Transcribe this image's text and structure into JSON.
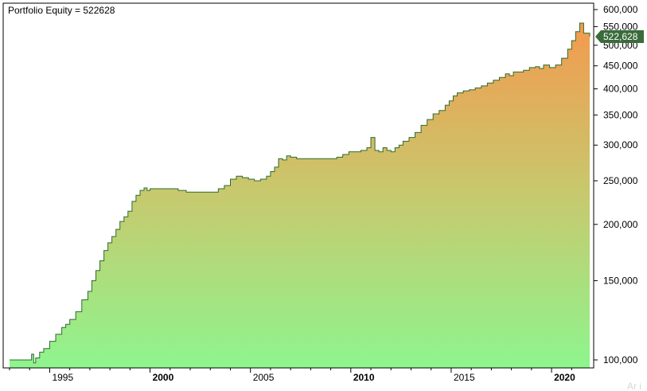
{
  "colors": {
    "line": "#2f6b2f",
    "fill_top": "#f39a4e",
    "fill_mid": "#c7c96e",
    "fill_bottom": "#8ef58e",
    "badge": "#3a6b3a",
    "frame": "#000000"
  },
  "chart_data": {
    "type": "area",
    "title": "Portfolio Equity = 522628",
    "yscale": "log",
    "ylim": [
      96000,
      620000
    ],
    "xlim": [
      1993.0,
      2021.9
    ],
    "grid": false,
    "y_ticks": [
      {
        "value": 600000,
        "label": "600,000"
      },
      {
        "value": 550000,
        "label": "550,000"
      },
      {
        "value": 500000,
        "label": "500,000"
      },
      {
        "value": 450000,
        "label": "450,000"
      },
      {
        "value": 400000,
        "label": "400,000"
      },
      {
        "value": 350000,
        "label": "350,000"
      },
      {
        "value": 300000,
        "label": "300,000"
      },
      {
        "value": 250000,
        "label": "250,000"
      },
      {
        "value": 200000,
        "label": "200,000"
      },
      {
        "value": 150000,
        "label": "150,000"
      },
      {
        "value": 100000,
        "label": "100,000"
      }
    ],
    "x_ticks": [
      {
        "value": 1995,
        "label": "1995",
        "bold": false
      },
      {
        "value": 2000,
        "label": "2000",
        "bold": true
      },
      {
        "value": 2005,
        "label": "2005",
        "bold": false
      },
      {
        "value": 2010,
        "label": "2010",
        "bold": true
      },
      {
        "value": 2015,
        "label": "2015",
        "bold": false
      },
      {
        "value": 2020,
        "label": "2020",
        "bold": true
      }
    ],
    "last_value_label": "522,628",
    "last_value": 522628,
    "series": [
      {
        "x": [
          1993.0,
          1994.0,
          1994.1,
          1994.2,
          1994.3,
          1994.5,
          1994.7,
          1995.0,
          1995.3,
          1995.6,
          1995.8,
          1996.0,
          1996.3,
          1996.6,
          1996.9,
          1997.1,
          1997.3,
          1997.5,
          1997.7,
          1997.9,
          1998.1,
          1998.3,
          1998.5,
          1998.7,
          1998.9,
          1999.1,
          1999.3,
          1999.5,
          1999.7,
          1999.85,
          2000.0,
          2000.5,
          2001.0,
          2001.4,
          2001.8,
          2002.2,
          2002.6,
          2003.0,
          2003.4,
          2003.7,
          2004.0,
          2004.3,
          2004.6,
          2004.9,
          2005.2,
          2005.5,
          2005.8,
          2006.0,
          2006.2,
          2006.4,
          2006.6,
          2006.8,
          2007.0,
          2007.3,
          2007.6,
          2008.0,
          2008.5,
          2009.0,
          2009.3,
          2009.6,
          2009.9,
          2010.2,
          2010.5,
          2010.8,
          2011.0,
          2011.2,
          2011.4,
          2011.6,
          2011.8,
          2012.0,
          2012.2,
          2012.4,
          2012.6,
          2012.9,
          2013.2,
          2013.5,
          2013.8,
          2014.1,
          2014.4,
          2014.7,
          2014.9,
          2015.1,
          2015.3,
          2015.6,
          2015.9,
          2016.2,
          2016.5,
          2016.8,
          2017.1,
          2017.4,
          2017.7,
          2017.9,
          2018.1,
          2018.3,
          2018.6,
          2018.9,
          2019.2,
          2019.4,
          2019.6,
          2019.9,
          2020.2,
          2020.5,
          2020.8,
          2021.0,
          2021.2,
          2021.4,
          2021.6,
          2021.9
        ],
        "values": [
          100000,
          100000,
          103000,
          98500,
          101000,
          104000,
          106000,
          110000,
          114000,
          118000,
          120000,
          123000,
          128000,
          136000,
          142000,
          150000,
          158000,
          166000,
          175000,
          182000,
          188000,
          195000,
          203000,
          208000,
          214000,
          225000,
          232000,
          238000,
          241000,
          238000,
          240000,
          240000,
          240000,
          238000,
          236000,
          236000,
          236000,
          236000,
          240000,
          244000,
          252000,
          256000,
          254000,
          252000,
          250000,
          252000,
          256000,
          262000,
          268000,
          280000,
          278000,
          284000,
          282000,
          280000,
          280000,
          280000,
          280000,
          280000,
          282000,
          286000,
          290000,
          290000,
          292000,
          296000,
          312000,
          292000,
          290000,
          296000,
          292000,
          290000,
          296000,
          300000,
          306000,
          312000,
          320000,
          332000,
          342000,
          352000,
          358000,
          368000,
          376000,
          386000,
          392000,
          396000,
          398000,
          402000,
          406000,
          412000,
          418000,
          424000,
          432000,
          428000,
          436000,
          436000,
          440000,
          446000,
          448000,
          444000,
          452000,
          446000,
          452000,
          468000,
          490000,
          512000,
          536000,
          560000,
          532000,
          522628
        ]
      }
    ]
  },
  "watermark": "Ar i"
}
